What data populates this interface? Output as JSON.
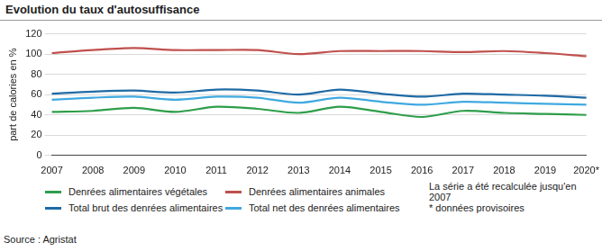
{
  "chart_data": {
    "type": "line",
    "title": "Evolution du taux d'autosuffisance",
    "y_label": "part de calories en %",
    "categories": [
      "2007",
      "2008",
      "2009",
      "2010",
      "2011",
      "2012",
      "2013",
      "2014",
      "2015",
      "2016",
      "2017",
      "2018",
      "2019",
      "2020*"
    ],
    "series": [
      {
        "name": "Denrées alimentaires végétales",
        "color": "#2e9e4a",
        "values": [
          43,
          44,
          47,
          43,
          48,
          46,
          42,
          48,
          43,
          38,
          44,
          42,
          41,
          40
        ]
      },
      {
        "name": "Denrées alimentaires animales",
        "color": "#c0504d",
        "values": [
          101,
          104,
          106,
          104,
          104,
          104,
          100,
          103,
          103,
          103,
          102,
          103,
          101,
          98
        ]
      },
      {
        "name": "Total brut des denrées alimentaires",
        "color": "#1f6aa5",
        "values": [
          61,
          63,
          64,
          62,
          65,
          64,
          60,
          65,
          61,
          58,
          61,
          60,
          59,
          57
        ]
      },
      {
        "name": "Total net des denrées alimentaires",
        "color": "#3fa9e0",
        "values": [
          55,
          57,
          58,
          55,
          58,
          57,
          52,
          57,
          53,
          50,
          53,
          52,
          51,
          50
        ]
      }
    ],
    "ylim": [
      0,
      120
    ],
    "yticks": [
      0,
      20,
      40,
      60,
      80,
      100,
      120
    ],
    "grid": true,
    "annotations": [
      "La série a été recalculée jusqu'en 2007",
      "* données provisoires"
    ],
    "source": "Source : Agristat"
  }
}
